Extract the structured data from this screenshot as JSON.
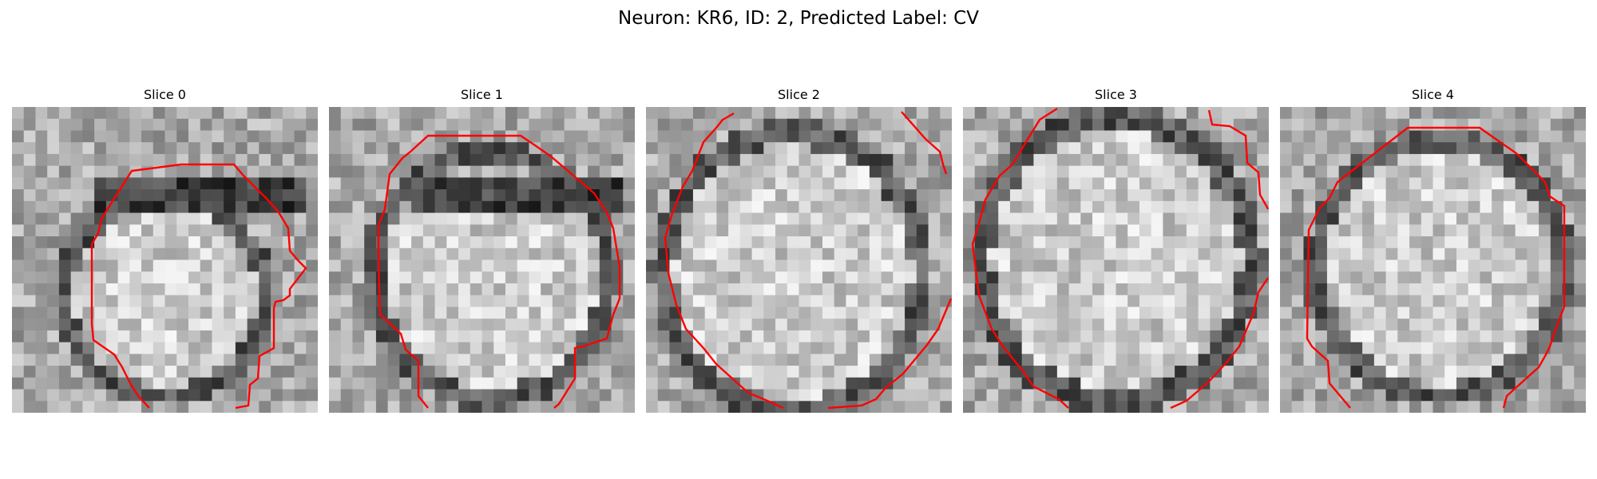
{
  "figure": {
    "title": "Neuron: KR6, ID: 2, Predicted Label: CV"
  },
  "slices": [
    {
      "title": "Slice 0",
      "contour_color": "#ff0000"
    },
    {
      "title": "Slice 1",
      "contour_color": "#ff0000"
    },
    {
      "title": "Slice 2",
      "contour_color": "#ff0000"
    },
    {
      "title": "Slice 3",
      "contour_color": "#ff0000"
    },
    {
      "title": "Slice 4",
      "contour_color": "#ff0000"
    }
  ],
  "colormap": "gray"
}
